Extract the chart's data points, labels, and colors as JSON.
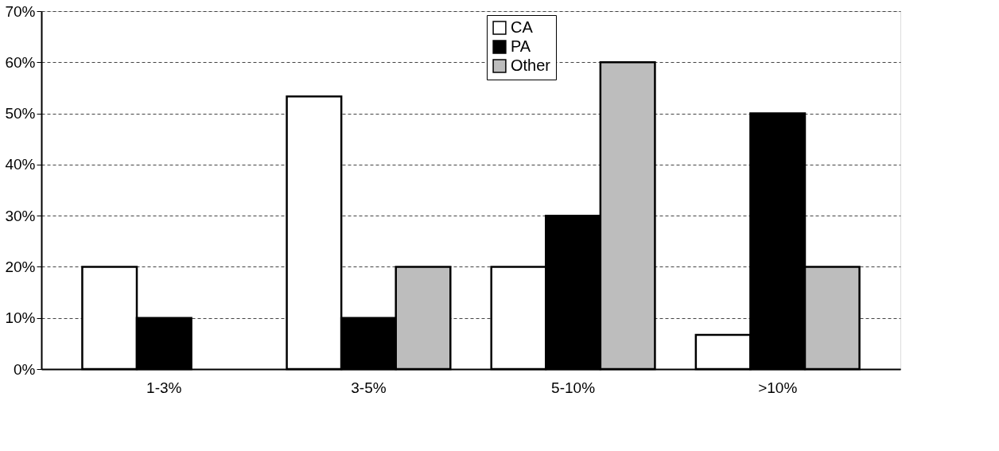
{
  "chart_data": {
    "type": "bar",
    "categories": [
      "1-3%",
      "3-5%",
      "5-10%",
      ">10%"
    ],
    "series": [
      {
        "name": "CA",
        "color": "#ffffff",
        "values": [
          20,
          53.3,
          20,
          6.7
        ]
      },
      {
        "name": "PA",
        "color": "#000000",
        "values": [
          10,
          10,
          30,
          50
        ]
      },
      {
        "name": "Other",
        "color": "#bdbdbd",
        "values": [
          null,
          20,
          60,
          20
        ]
      }
    ],
    "ylim": [
      0,
      70
    ],
    "yticks": [
      {
        "value": 0,
        "label": "0%"
      },
      {
        "value": 10,
        "label": "10%"
      },
      {
        "value": 20,
        "label": "20%"
      },
      {
        "value": 30,
        "label": "30%"
      },
      {
        "value": 40,
        "label": "40%"
      },
      {
        "value": 50,
        "label": "50%"
      },
      {
        "value": 60,
        "label": "60%"
      },
      {
        "value": 70,
        "label": "70%"
      }
    ],
    "grid": "y",
    "legend": "top"
  }
}
